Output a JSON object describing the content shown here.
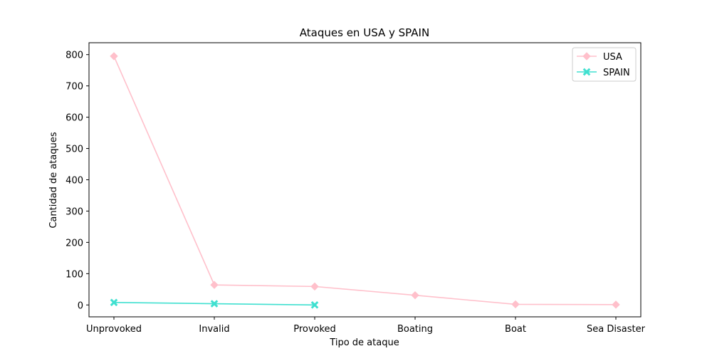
{
  "chart_data": {
    "type": "line",
    "title": "Ataques en USA y SPAIN",
    "xlabel": "Tipo de ataque",
    "ylabel": "Cantidad de ataques",
    "categories": [
      "Unprovoked",
      "Invalid",
      "Provoked",
      "Boating",
      "Boat",
      "Sea Disaster"
    ],
    "ylim": [
      -38,
      838
    ],
    "yticks": [
      0,
      100,
      200,
      300,
      400,
      500,
      600,
      700,
      800
    ],
    "grid": false,
    "legend_position": "top-right",
    "series": [
      {
        "name": "USA",
        "color": "#ffc0cb",
        "marker": "diamond",
        "values": [
          795,
          64,
          59,
          31,
          2,
          1
        ]
      },
      {
        "name": "SPAIN",
        "color": "#40e0d0",
        "marker": "x",
        "values": [
          8,
          4,
          0,
          null,
          null,
          null
        ]
      }
    ]
  }
}
